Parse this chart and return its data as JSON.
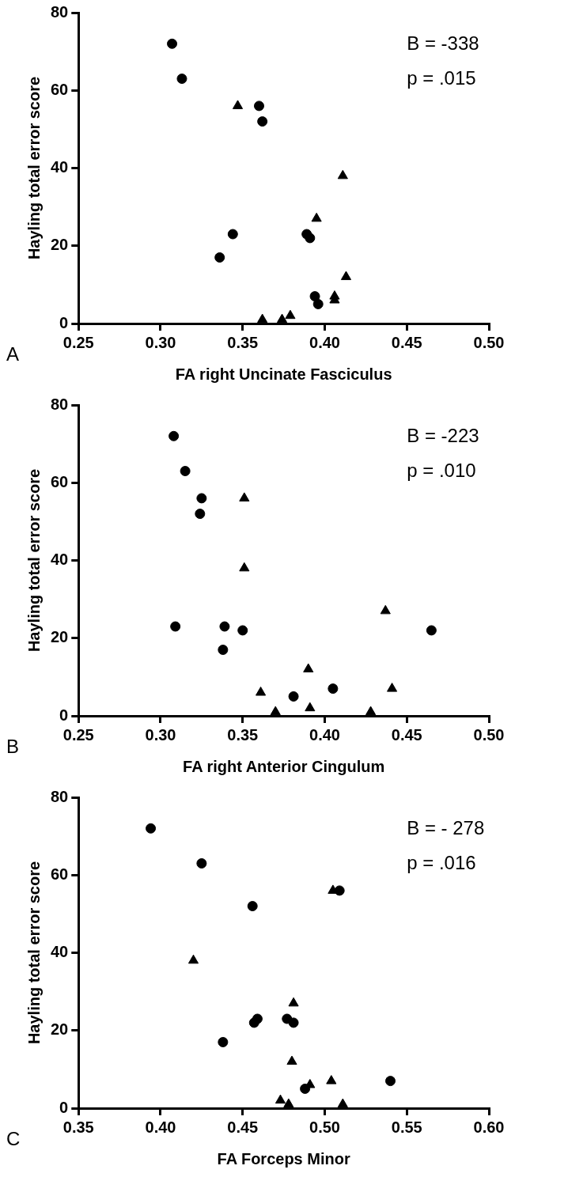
{
  "chart_data": [
    {
      "type": "scatter",
      "xlabel": "FA right Uncinate Fasciculus",
      "ylabel": "Hayling total error score",
      "xlim": [
        0.25,
        0.5
      ],
      "xticks": [
        {
          "value": 0.25,
          "label": "0.25"
        },
        {
          "value": 0.3,
          "label": "0.30"
        },
        {
          "value": 0.35,
          "label": "0.35"
        },
        {
          "value": 0.4,
          "label": "0.40"
        },
        {
          "value": 0.45,
          "label": "0.45"
        },
        {
          "value": 0.5,
          "label": "0.50"
        }
      ],
      "ylim": [
        0,
        80
      ],
      "yticks": [
        0,
        20,
        40,
        60,
        80
      ],
      "grid": false,
      "legend": false,
      "annotations": [
        "B = -338",
        "p = .015",
        "A"
      ],
      "series": [
        {
          "color": "#000000",
          "marker": "circle",
          "x": [
            0.307,
            0.313,
            0.36,
            0.362,
            0.344,
            0.336,
            0.389,
            0.391,
            0.394,
            0.396
          ],
          "values": [
            72,
            63,
            56,
            52,
            23,
            17,
            23,
            22,
            7,
            5
          ]
        },
        {
          "color": "#000000",
          "marker": "triangle",
          "x": [
            0.347,
            0.411,
            0.395,
            0.413,
            0.406,
            0.406,
            0.362,
            0.374,
            0.379
          ],
          "values": [
            56,
            38,
            27,
            12,
            7,
            6,
            1,
            1,
            2
          ]
        }
      ]
    },
    {
      "type": "scatter",
      "xlabel": "FA right Anterior Cingulum",
      "ylabel": "Hayling total error score",
      "xlim": [
        0.25,
        0.5
      ],
      "xticks": [
        {
          "value": 0.25,
          "label": "0.25"
        },
        {
          "value": 0.3,
          "label": "0.30"
        },
        {
          "value": 0.35,
          "label": "0.35"
        },
        {
          "value": 0.4,
          "label": "0.40"
        },
        {
          "value": 0.45,
          "label": "0.45"
        },
        {
          "value": 0.5,
          "label": "0.50"
        }
      ],
      "ylim": [
        0,
        80
      ],
      "yticks": [
        0,
        20,
        40,
        60,
        80
      ],
      "grid": false,
      "legend": false,
      "annotations": [
        "B = -223",
        "p = .010",
        "B"
      ],
      "series": [
        {
          "color": "#000000",
          "marker": "circle",
          "x": [
            0.308,
            0.315,
            0.325,
            0.324,
            0.309,
            0.339,
            0.35,
            0.338,
            0.465,
            0.381,
            0.405
          ],
          "values": [
            72,
            63,
            56,
            52,
            23,
            23,
            22,
            17,
            22,
            5,
            7
          ]
        },
        {
          "color": "#000000",
          "marker": "triangle",
          "x": [
            0.351,
            0.351,
            0.437,
            0.39,
            0.361,
            0.441,
            0.37,
            0.391,
            0.428
          ],
          "values": [
            56,
            38,
            27,
            12,
            6,
            7,
            1,
            2,
            1
          ]
        }
      ]
    },
    {
      "type": "scatter",
      "xlabel": "FA Forceps Minor",
      "ylabel": "Hayling total error score",
      "xlim": [
        0.35,
        0.6
      ],
      "xticks": [
        {
          "value": 0.35,
          "label": "0.35"
        },
        {
          "value": 0.4,
          "label": "0.40"
        },
        {
          "value": 0.45,
          "label": "0.45"
        },
        {
          "value": 0.5,
          "label": "0.50"
        },
        {
          "value": 0.55,
          "label": "0.55"
        },
        {
          "value": 0.6,
          "label": "0.60"
        }
      ],
      "ylim": [
        0,
        80
      ],
      "yticks": [
        0,
        20,
        40,
        60,
        80
      ],
      "grid": false,
      "legend": false,
      "annotations": [
        "B = - 278",
        "p = .016",
        "C"
      ],
      "series": [
        {
          "color": "#000000",
          "marker": "circle",
          "x": [
            0.394,
            0.425,
            0.456,
            0.509,
            0.438,
            0.457,
            0.459,
            0.477,
            0.481,
            0.488,
            0.54
          ],
          "values": [
            72,
            63,
            52,
            56,
            17,
            22,
            23,
            23,
            22,
            5,
            7
          ]
        },
        {
          "color": "#000000",
          "marker": "triangle",
          "x": [
            0.505,
            0.42,
            0.481,
            0.48,
            0.491,
            0.504,
            0.473,
            0.478,
            0.511
          ],
          "values": [
            56,
            38,
            27,
            12,
            6,
            7,
            2,
            1,
            1
          ]
        }
      ]
    }
  ]
}
